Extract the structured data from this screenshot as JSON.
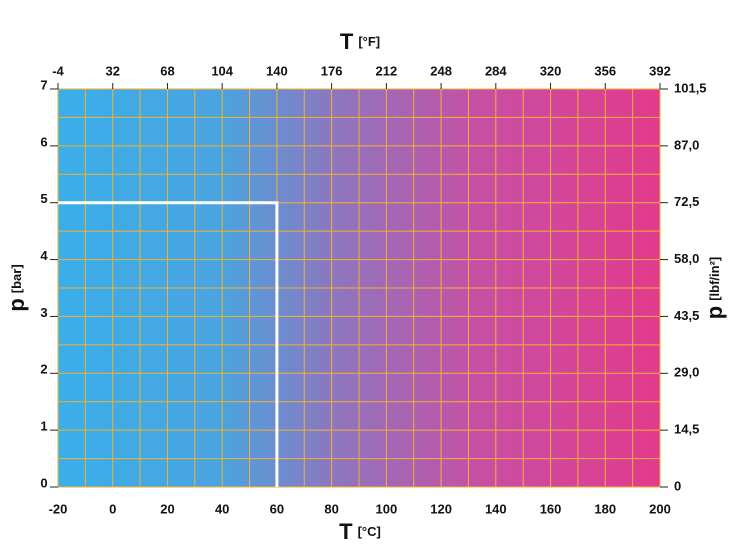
{
  "chart_data": {
    "type": "line",
    "xlabel": "T",
    "xlabel_unit": "[°C]",
    "x2label": "T",
    "x2label_unit": "[°F]",
    "ylabel": "p",
    "ylabel_unit": "[bar]",
    "y2label": "p",
    "y2label_unit": "[lbf/in²]",
    "xlim": [
      -20,
      200
    ],
    "xticks": [
      -20,
      0,
      20,
      40,
      60,
      80,
      100,
      120,
      140,
      160,
      180,
      200
    ],
    "x2lim": [
      -4,
      392
    ],
    "x2ticks": [
      -4,
      32,
      68,
      104,
      140,
      176,
      212,
      248,
      284,
      320,
      356,
      392
    ],
    "ylim": [
      0,
      7
    ],
    "yticks": [
      0,
      1,
      2,
      3,
      4,
      5,
      6,
      7
    ],
    "y2lim": [
      0,
      101.5
    ],
    "y2ticks": [
      0,
      {
        "value": 14.5,
        "label": "14,5"
      },
      {
        "value": 29,
        "label": "29,0"
      },
      {
        "value": 43.5,
        "label": "43,5"
      },
      {
        "value": 58,
        "label": "58,0"
      },
      {
        "value": 72.5,
        "label": "72,5"
      },
      {
        "value": 87,
        "label": "87,0"
      },
      {
        "value": 101.5,
        "label": "101,5"
      }
    ],
    "grid": true,
    "series": [
      {
        "color": "#ffffff",
        "x": [
          -20,
          60,
          60
        ],
        "values": [
          5,
          5,
          0
        ]
      }
    ]
  }
}
